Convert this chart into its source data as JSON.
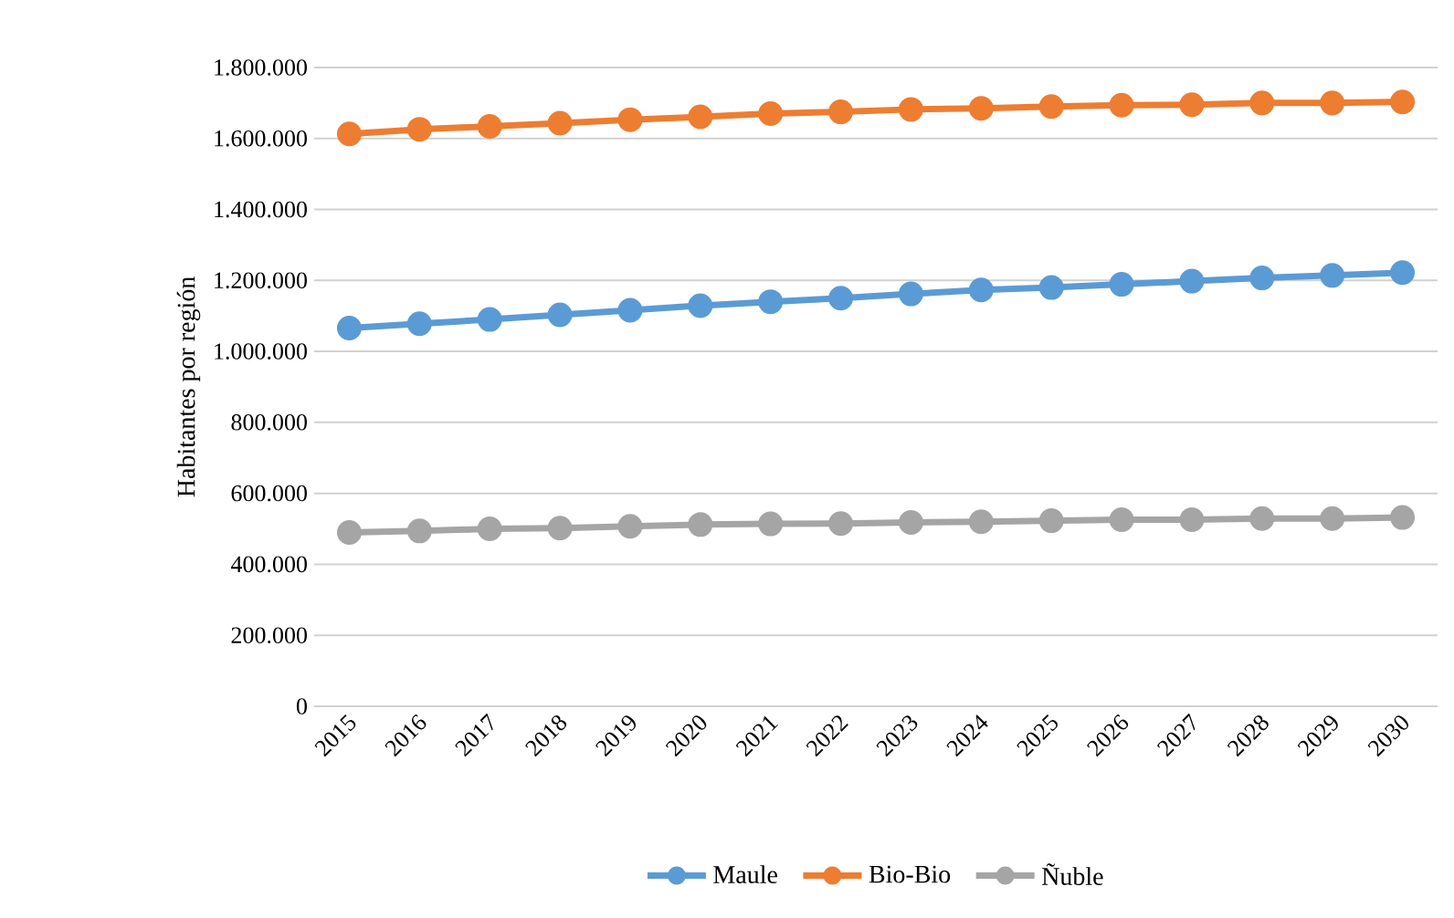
{
  "chart_data": {
    "type": "line",
    "ylabel": "Habitantes por región",
    "categories": [
      "2015",
      "2016",
      "2017",
      "2018",
      "2019",
      "2020",
      "2021",
      "2022",
      "2023",
      "2024",
      "2025",
      "2026",
      "2027",
      "2028",
      "2029",
      "2030"
    ],
    "series": [
      {
        "name": "Maule",
        "color": "#5b9bd5",
        "values": [
          1066000,
          1078000,
          1090000,
          1103000,
          1116000,
          1129000,
          1140000,
          1150000,
          1162000,
          1173000,
          1180000,
          1189000,
          1198000,
          1207000,
          1214000,
          1222000
        ]
      },
      {
        "name": "Bio-Bio",
        "color": "#ed7d31",
        "values": [
          1613000,
          1626000,
          1634000,
          1643000,
          1653000,
          1661000,
          1670000,
          1675000,
          1682000,
          1685000,
          1690000,
          1694000,
          1695000,
          1700000,
          1700000,
          1703000
        ]
      },
      {
        "name": "Ñuble",
        "color": "#a5a5a5",
        "values": [
          490000,
          494000,
          500000,
          502000,
          507000,
          512000,
          514000,
          515000,
          518000,
          520000,
          523000,
          526000,
          526000,
          529000,
          529000,
          532000
        ]
      }
    ],
    "ylim": [
      0,
      1800000
    ],
    "yticks": [
      {
        "value": 0,
        "label": "0"
      },
      {
        "value": 200000,
        "label": "200.000"
      },
      {
        "value": 400000,
        "label": "400.000"
      },
      {
        "value": 600000,
        "label": "600.000"
      },
      {
        "value": 800000,
        "label": "800.000"
      },
      {
        "value": 1000000,
        "label": "1.000.000"
      },
      {
        "value": 1200000,
        "label": "1.200.000"
      },
      {
        "value": 1400000,
        "label": "1.400.000"
      },
      {
        "value": 1600000,
        "label": "1.600.000"
      },
      {
        "value": 1800000,
        "label": "1.800.000"
      }
    ],
    "grid": "y",
    "legend": "bottom",
    "marker": "circle",
    "line_style": "solid"
  }
}
